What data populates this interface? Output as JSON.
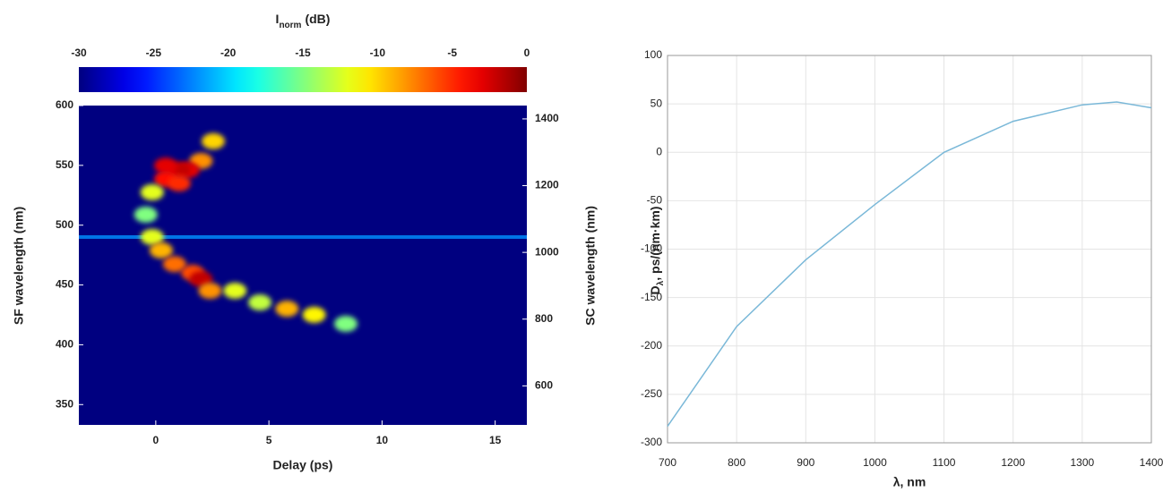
{
  "chart_data": [
    {
      "type": "heatmap",
      "colorbar_label": "I",
      "colorbar_label_sub": "norm",
      "colorbar_unit": "(dB)",
      "clim": [
        -30,
        0
      ],
      "cticks": [
        -30,
        -25,
        -20,
        -15,
        -10,
        -5,
        0
      ],
      "xlabel": "Delay (ps)",
      "ylabel": "SF wavelength (nm)",
      "y2label": "SC wavelength (nm)",
      "xlim": [
        -3.4,
        16.4
      ],
      "xticks": [
        0,
        5,
        10,
        15
      ],
      "ylim": [
        333,
        600
      ],
      "yticks": [
        350,
        400,
        450,
        500,
        550,
        600
      ],
      "y2lim": [
        483,
        1440
      ],
      "y2ticks": [
        600,
        800,
        1000,
        1200,
        1400
      ],
      "background": -30,
      "stripe": {
        "y": 1046,
        "value": -22
      },
      "points": {
        "x": [
          2.54,
          2.0,
          1.43,
          1.03,
          0.44,
          0.44,
          1.03,
          -0.16,
          -0.44,
          -0.16,
          0.24,
          0.83,
          1.63,
          2.0,
          2.4,
          3.5,
          4.6,
          5.8,
          7.0,
          8.4
        ],
        "y": [
          1333,
          1274,
          1247,
          1247,
          1260,
          1220,
          1207,
          1180,
          1113,
          1046,
          1006,
          965,
          939,
          920,
          885,
          885,
          850,
          831,
          813,
          786
        ],
        "values": [
          -10,
          -8,
          -3,
          -2,
          -3,
          -4,
          -5,
          -12,
          -15,
          -12,
          -9,
          -7,
          -6,
          -2,
          -8,
          -12,
          -13,
          -9,
          -11,
          -15
        ]
      }
    },
    {
      "type": "line",
      "xlabel": "λ, nm",
      "ylabel": "D",
      "ylabel_sub": "λ",
      "ylabel_rest": ", ps/(nm·km)",
      "x": [
        700,
        800,
        900,
        1000,
        1100,
        1200,
        1300,
        1350,
        1400
      ],
      "values": [
        -283,
        -180,
        -111,
        -54,
        0,
        32,
        49,
        52,
        46
      ],
      "color": "#7ab8d8",
      "xlim": [
        700,
        1400
      ],
      "xticks": [
        700,
        800,
        900,
        1000,
        1100,
        1200,
        1300,
        1400
      ],
      "ylim": [
        -300,
        100
      ],
      "yticks": [
        -300,
        -250,
        -200,
        -150,
        -100,
        -50,
        0,
        50,
        100
      ],
      "grid": true
    }
  ]
}
